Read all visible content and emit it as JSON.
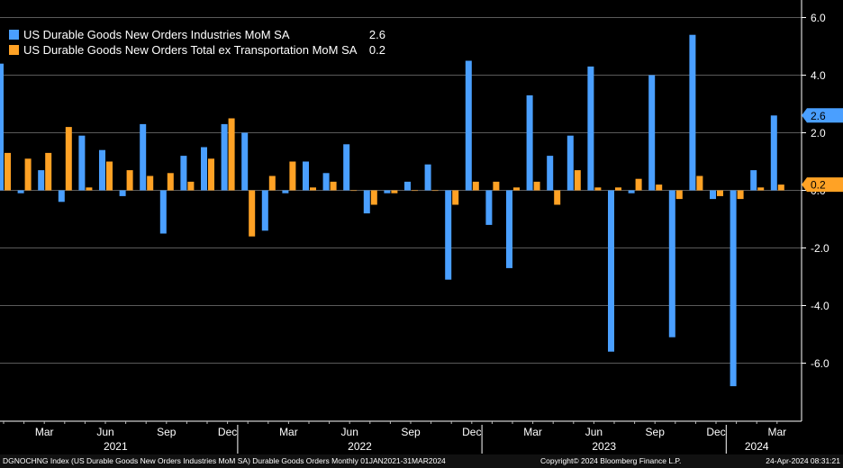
{
  "chart_data": {
    "type": "bar",
    "title": "",
    "xlabel": "",
    "ylabel": "",
    "ylim": [
      -8,
      6.5
    ],
    "grid": true,
    "legend_position": "top-left",
    "y_ticks": [
      "6.0",
      "4.0",
      "2.0",
      "0.0",
      "-2.0",
      "-4.0",
      "-6.0"
    ],
    "y_tick_values": [
      6,
      4,
      2,
      0,
      -2,
      -4,
      -6
    ],
    "categories": [
      "Jan 2021",
      "Feb 2021",
      "Mar 2021",
      "Apr 2021",
      "May 2021",
      "Jun 2021",
      "Jul 2021",
      "Aug 2021",
      "Sep 2021",
      "Oct 2021",
      "Nov 2021",
      "Dec 2021",
      "Jan 2022",
      "Feb 2022",
      "Mar 2022",
      "Apr 2022",
      "May 2022",
      "Jun 2022",
      "Jul 2022",
      "Aug 2022",
      "Sep 2022",
      "Oct 2022",
      "Nov 2022",
      "Dec 2022",
      "Jan 2023",
      "Feb 2023",
      "Mar 2023",
      "Apr 2023",
      "May 2023",
      "Jun 2023",
      "Jul 2023",
      "Aug 2023",
      "Sep 2023",
      "Oct 2023",
      "Nov 2023",
      "Dec 2023",
      "Jan 2024",
      "Feb 2024",
      "Mar 2024"
    ],
    "series": [
      {
        "name": "US Durable Goods New Orders Industries MoM SA",
        "last_value": "2.6",
        "color": "#4a9fff",
        "values": [
          4.4,
          -0.1,
          0.7,
          -0.4,
          1.9,
          1.4,
          -0.2,
          2.3,
          -1.5,
          1.2,
          1.5,
          2.3,
          2.0,
          -1.4,
          -0.1,
          1.0,
          0.6,
          1.6,
          -0.8,
          -0.1,
          0.3,
          0.9,
          -3.1,
          4.5,
          -1.2,
          -2.7,
          3.3,
          1.2,
          1.9,
          4.3,
          -5.6,
          -0.1,
          4.0,
          -5.1,
          5.4,
          -0.3,
          -6.8,
          0.7,
          2.6
        ]
      },
      {
        "name": "US Durable Goods New Orders Total ex Transportation MoM SA",
        "last_value": "0.2",
        "color": "#ffa225",
        "values": [
          1.3,
          1.1,
          1.3,
          2.2,
          0.1,
          1.0,
          0.7,
          0.5,
          0.6,
          0.3,
          1.1,
          2.5,
          -1.6,
          0.5,
          1.0,
          0.1,
          0.3,
          0.0,
          -0.5,
          -0.1,
          0.0,
          0.0,
          -0.5,
          0.3,
          0.3,
          0.1,
          0.3,
          -0.5,
          0.7,
          0.1,
          0.1,
          0.4,
          0.2,
          -0.3,
          0.5,
          -0.2,
          -0.3,
          0.1,
          0.2
        ]
      }
    ],
    "x_month_labels": [
      {
        "label": "Mar",
        "index": 2
      },
      {
        "label": "Jun",
        "index": 5
      },
      {
        "label": "Sep",
        "index": 8
      },
      {
        "label": "Dec",
        "index": 11
      },
      {
        "label": "Mar",
        "index": 14
      },
      {
        "label": "Jun",
        "index": 17
      },
      {
        "label": "Sep",
        "index": 20
      },
      {
        "label": "Dec",
        "index": 23
      },
      {
        "label": "Mar",
        "index": 26
      },
      {
        "label": "Jun",
        "index": 29
      },
      {
        "label": "Sep",
        "index": 32
      },
      {
        "label": "Dec",
        "index": 35
      },
      {
        "label": "Mar",
        "index": 38
      }
    ],
    "x_year_labels": [
      {
        "label": "2021",
        "start": 0,
        "end": 11
      },
      {
        "label": "2022",
        "start": 12,
        "end": 23
      },
      {
        "label": "2023",
        "start": 24,
        "end": 35
      },
      {
        "label": "2024",
        "start": 36,
        "end": 38
      }
    ]
  },
  "footer": {
    "left": "DGNOCHNG Index (US Durable Goods New Orders Industries MoM SA) Durable Goods Orders  Monthly 01JAN2021-31MAR2024",
    "middle": "Copyright© 2024 Bloomberg Finance L.P.",
    "right": "24-Apr-2024 08:31:21"
  }
}
